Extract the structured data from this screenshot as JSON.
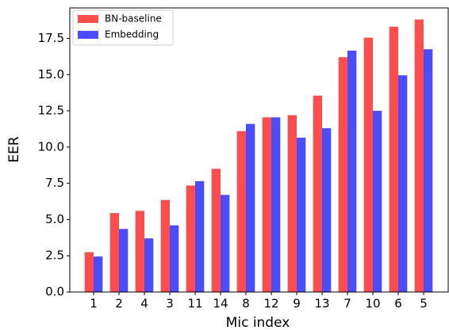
{
  "chart_data": {
    "type": "bar",
    "x_label": "Mic index",
    "y_label": "EER",
    "categories": [
      "1",
      "2",
      "4",
      "3",
      "11",
      "14",
      "8",
      "12",
      "9",
      "13",
      "7",
      "10",
      "6",
      "5"
    ],
    "series": [
      {
        "name": "BN-baseline",
        "color": "#ff4c4c",
        "values": [
          2.75,
          5.45,
          5.6,
          6.35,
          7.35,
          8.5,
          11.1,
          12.05,
          12.2,
          13.55,
          16.2,
          17.55,
          18.3,
          18.8
        ]
      },
      {
        "name": "Embedding",
        "color": "#4c4cff",
        "values": [
          2.45,
          4.35,
          3.7,
          4.6,
          7.65,
          6.7,
          11.6,
          12.05,
          10.65,
          11.3,
          16.65,
          12.5,
          14.95,
          16.75
        ]
      }
    ],
    "ylim": [
      0,
      19.6
    ],
    "yticks": [
      {
        "value": 0,
        "label": "0.0"
      },
      {
        "value": 2.5,
        "label": "2.5"
      },
      {
        "value": 5,
        "label": "5.0"
      },
      {
        "value": 7.5,
        "label": "7.5"
      },
      {
        "value": 10,
        "label": "10.0"
      },
      {
        "value": 12.5,
        "label": "12.5"
      },
      {
        "value": 15,
        "label": "15.0"
      },
      {
        "value": 17.5,
        "label": "17.5"
      }
    ],
    "legend": "upper left"
  }
}
